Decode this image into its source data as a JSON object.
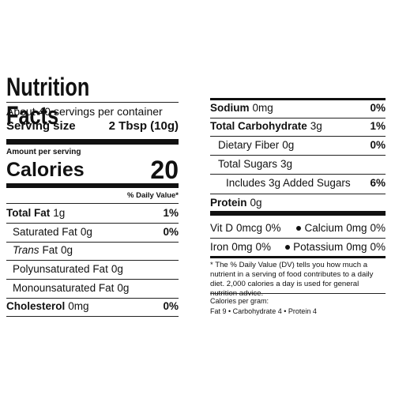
{
  "nutrition_label": {
    "title": "Nutrition Facts",
    "servings_per_container": "About 40 servings per container",
    "serving_size": {
      "label": "Serving size",
      "value": "2 Tbsp (10g)"
    },
    "amount_per_serving": "Amount per serving",
    "calories": {
      "label": "Calories",
      "value": "20"
    },
    "daily_value_header": "% Daily Value*",
    "nutrients": [
      {
        "name": "Total Fat",
        "amount": "1g",
        "daily_value": "1%"
      },
      {
        "name": "Saturated Fat",
        "amount": "0g",
        "daily_value": "0%"
      },
      {
        "name_italic": "Trans",
        "name": "Fat",
        "amount": "0g"
      },
      {
        "name": "Polyunsaturated Fat",
        "amount": "0g"
      },
      {
        "name": "Monounsaturated Fat",
        "amount": "0g"
      },
      {
        "name": "Cholesterol",
        "amount": "0mg",
        "daily_value": "0%"
      },
      {
        "name": "Sodium",
        "amount": "0mg",
        "daily_value": "0%"
      },
      {
        "name": "Total Carbohydrate",
        "amount": "3g",
        "daily_value": "1%"
      },
      {
        "name": "Dietary Fiber",
        "amount": "0g",
        "daily_value": "0%"
      },
      {
        "name": "Total Sugars",
        "amount": "3g"
      },
      {
        "name": "Includes 3g Added Sugars",
        "daily_value": "6%"
      },
      {
        "name": "Protein",
        "amount": "0g"
      }
    ],
    "vitamins": [
      {
        "name": "Vit D",
        "amount": "0mcg",
        "daily_value": "0%"
      },
      {
        "name": "Calcium",
        "amount": "0mg",
        "daily_value": "0%"
      },
      {
        "name": "Iron",
        "amount": "0mg",
        "daily_value": "0%"
      },
      {
        "name": "Potassium",
        "amount": "0mg",
        "daily_value": "0%"
      }
    ],
    "footnote": "* The % Daily Value (DV) tells you how much a nutrient in a serving of food contributes to a daily diet. 2,000 calories a day is used for general nutrition advice.",
    "calories_per_gram": {
      "label": "Calories per gram:",
      "values": "Fat 9 • Carbohydrate 4 • Protein 4"
    }
  }
}
